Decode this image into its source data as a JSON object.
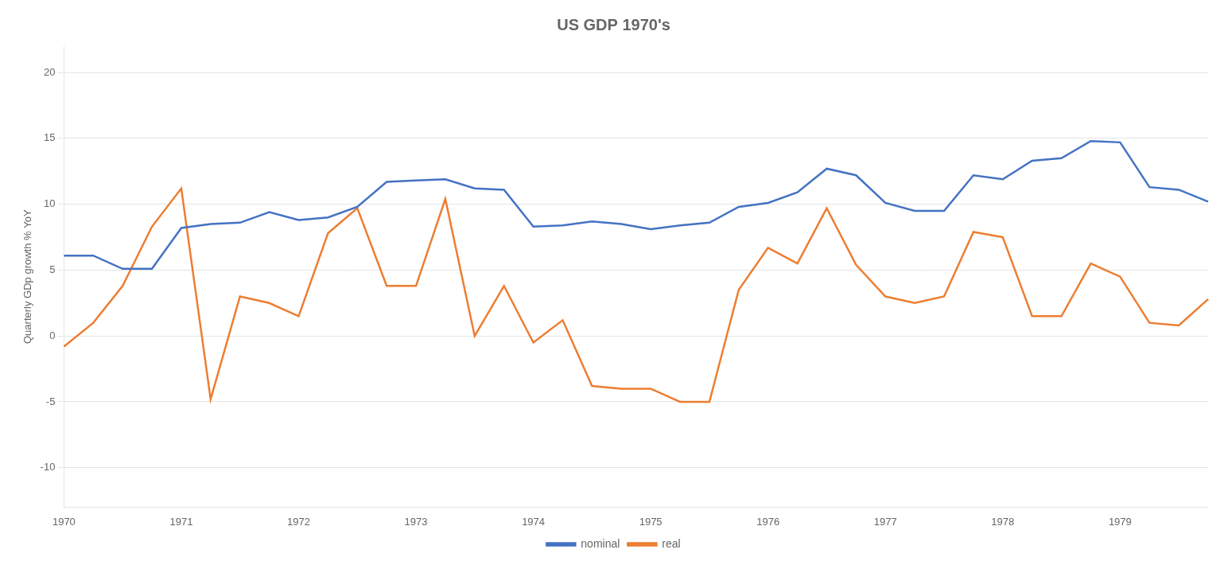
{
  "chart_data": {
    "type": "line",
    "title": "US GDP 1970's",
    "ylabel": "Quarterly GDp growth % YoY",
    "categories": [
      "1970",
      null,
      null,
      null,
      "1971",
      null,
      null,
      null,
      "1972",
      null,
      null,
      null,
      "1973",
      null,
      null,
      null,
      "1974",
      null,
      null,
      null,
      "1975",
      null,
      null,
      null,
      "1976",
      null,
      null,
      null,
      "1977",
      null,
      null,
      null,
      "1978",
      null,
      null,
      null,
      "1979",
      null,
      null,
      null
    ],
    "series": [
      {
        "name": "nominal",
        "color": "#4472C4",
        "values": [
          6.1,
          6.1,
          5.1,
          5.1,
          8.2,
          8.5,
          8.6,
          9.4,
          8.8,
          9.0,
          9.8,
          11.7,
          11.8,
          11.9,
          11.2,
          11.1,
          8.3,
          8.4,
          8.7,
          8.5,
          8.1,
          8.4,
          8.6,
          9.8,
          10.1,
          10.9,
          12.7,
          12.2,
          10.1,
          9.5,
          9.5,
          12.2,
          11.9,
          13.3,
          13.5,
          14.8,
          14.7,
          11.3,
          11.1,
          10.2
        ]
      },
      {
        "name": "real",
        "color": "#ED7D31",
        "values": [
          -0.8,
          1.0,
          3.8,
          8.3,
          11.2,
          -4.8,
          3.0,
          2.5,
          1.5,
          7.8,
          9.7,
          3.8,
          3.8,
          10.4,
          0.0,
          3.8,
          -0.5,
          1.2,
          -3.8,
          -4.0,
          -4.0,
          -5.0,
          -5.0,
          3.5,
          6.7,
          5.5,
          9.7,
          5.4,
          3.0,
          2.5,
          3.0,
          7.9,
          7.5,
          1.5,
          1.5,
          5.5,
          4.5,
          1.0,
          0.8,
          2.8
        ]
      }
    ],
    "ylim": [
      -13,
      22
    ],
    "yticks": [
      -10,
      -5,
      0,
      5,
      10,
      15,
      20
    ],
    "grid": true,
    "legend": "bottom"
  }
}
